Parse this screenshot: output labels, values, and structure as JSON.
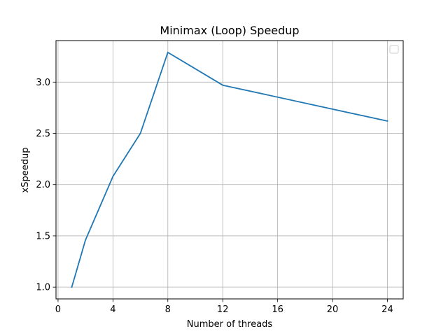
{
  "chart_data": {
    "type": "line",
    "title": "Minimax (Loop) Speedup",
    "xlabel": "Number of threads",
    "ylabel": "xSpeedup",
    "x": [
      1,
      2,
      4,
      6,
      8,
      12,
      24
    ],
    "series": [
      {
        "values": [
          1.0,
          1.46,
          2.08,
          2.5,
          3.29,
          2.97,
          2.62
        ],
        "color": "#1f77b4"
      }
    ],
    "xlim": [
      -0.15,
      25.15
    ],
    "ylim": [
      0.885,
      3.405
    ],
    "xticks": [
      0,
      4,
      8,
      12,
      16,
      20,
      24
    ],
    "xtick_labels": [
      "0",
      "4",
      "8",
      "12",
      "16",
      "20",
      "24"
    ],
    "yticks": [
      1.0,
      1.5,
      2.0,
      2.5,
      3.0
    ],
    "ytick_labels": [
      "1.0",
      "1.5",
      "2.0",
      "2.5",
      "3.0"
    ],
    "grid": true,
    "legend": "top-right, empty",
    "colors": {
      "grid": "#b0b0b0",
      "axes": "#000000",
      "background": "#ffffff"
    }
  }
}
